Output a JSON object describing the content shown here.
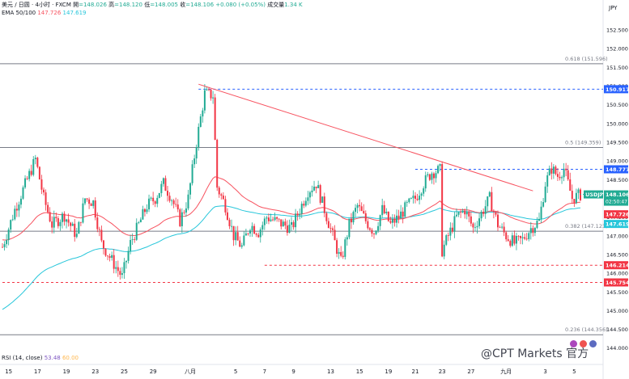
{
  "header": {
    "symbol_line": "美元 / 日圆 · 4小时 · FXCM",
    "open_label": "開",
    "open": "=148.026",
    "high_label": "高",
    "high": "=148.120",
    "low_label": "低",
    "low": "=148.005",
    "close_label": "收",
    "close": "=148.106",
    "change": "+0.080 (+0.05%)",
    "volume_label": "成交量",
    "volume": "1.34 K",
    "ema_label": "EMA 50/100",
    "ema_short": "147.726",
    "ema_long": "147.619"
  },
  "currency": "JPY",
  "rsi": {
    "label": "RSI (14, close)",
    "value1": "53.48",
    "value2": "60.00"
  },
  "watermark": "@CPT Markets 官方",
  "colors": {
    "up": "#22ab94",
    "down": "#f23645",
    "ema_short": "#f7525f",
    "ema_long": "#26c6da",
    "fib": "#787b86",
    "trend": "#f7525f",
    "blue_level": "#2962ff",
    "red_level": "#f23645"
  },
  "chart_data": {
    "type": "candlestick",
    "y_range": [
      143.8,
      153.3
    ],
    "y_ticks": [
      "152.500",
      "152.000",
      "151.500",
      "151.000",
      "150.500",
      "150.000",
      "149.500",
      "149.000",
      "148.500",
      "148.000",
      "147.500",
      "147.000",
      "146.500",
      "146.000",
      "145.500",
      "145.000",
      "144.500",
      "144.000"
    ],
    "y_tick_values": [
      152.5,
      152.0,
      151.5,
      151.0,
      150.5,
      150.0,
      149.5,
      149.0,
      148.5,
      148.0,
      147.5,
      147.0,
      146.5,
      146.0,
      145.5,
      145.0,
      144.5,
      144.0
    ],
    "x_ticks": [
      "15",
      "17",
      "19",
      "23",
      "25",
      "29",
      "八月",
      "5",
      "7",
      "9",
      "13",
      "15",
      "19",
      "21",
      "23",
      "27",
      "九月",
      "3",
      "5"
    ],
    "x_tick_index": [
      3,
      17,
      31,
      45,
      59,
      73,
      91,
      113,
      127,
      141,
      159,
      173,
      187,
      200,
      213,
      227,
      244,
      263,
      277
    ],
    "fib_levels": [
      {
        "label": "0.618 (151.596)",
        "value": 151.596
      },
      {
        "label": "0.5 (149.359)",
        "value": 149.359
      },
      {
        "label": "0.382 (147.123)",
        "value": 147.123
      },
      {
        "label": "0.236 (144.356)",
        "value": 144.356
      }
    ],
    "horizontal_levels": [
      {
        "value": 150.917,
        "label": "150.917",
        "color": "#2962ff",
        "style": "dashed",
        "start_index": 95
      },
      {
        "value": 148.777,
        "label": "148.777",
        "color": "#2962ff",
        "style": "dashed",
        "start_index": 200
      },
      {
        "value": 146.214,
        "label": "146.214",
        "color": "#f23645",
        "style": "dashed",
        "start_index": 127
      },
      {
        "value": 145.754,
        "label": "145.754",
        "color": "#f23645",
        "style": "dashed",
        "start_index": 0
      }
    ],
    "trendline": {
      "from": {
        "index": 95,
        "value": 151.05
      },
      "to": {
        "index": 257,
        "value": 148.2
      }
    },
    "price_labels": [
      {
        "text": "USDJPY",
        "value": 148.106,
        "color": "#22ab94"
      },
      {
        "text": "148.106",
        "value": 148.106,
        "color": "#22ab94"
      },
      {
        "text": "02:50:47",
        "value": 148.106,
        "color": "#22ab94",
        "offset": 1
      },
      {
        "text": "147.726",
        "value": 147.726,
        "color": "#f23645"
      },
      {
        "text": "147.619",
        "value": 147.619,
        "color": "#26c6da"
      }
    ],
    "anchors": [
      [
        0,
        146.7
      ],
      [
        6,
        147.7
      ],
      [
        12,
        148.5
      ],
      [
        16,
        149.05
      ],
      [
        20,
        148.0
      ],
      [
        24,
        147.3
      ],
      [
        30,
        147.55
      ],
      [
        36,
        147.0
      ],
      [
        40,
        148.0
      ],
      [
        44,
        147.9
      ],
      [
        48,
        146.8
      ],
      [
        54,
        146.25
      ],
      [
        58,
        145.9
      ],
      [
        62,
        146.8
      ],
      [
        66,
        147.3
      ],
      [
        70,
        147.8
      ],
      [
        74,
        148.0
      ],
      [
        78,
        148.4
      ],
      [
        82,
        148.0
      ],
      [
        86,
        147.4
      ],
      [
        90,
        148.0
      ],
      [
        94,
        149.5
      ],
      [
        98,
        150.8
      ],
      [
        102,
        150.75
      ],
      [
        104,
        148.3
      ],
      [
        108,
        147.8
      ],
      [
        112,
        147.0
      ],
      [
        116,
        146.7
      ],
      [
        120,
        147.3
      ],
      [
        124,
        147.1
      ],
      [
        128,
        147.5
      ],
      [
        132,
        147.4
      ],
      [
        136,
        147.3
      ],
      [
        140,
        147.2
      ],
      [
        144,
        147.7
      ],
      [
        148,
        148.2
      ],
      [
        152,
        148.4
      ],
      [
        156,
        147.7
      ],
      [
        160,
        147.0
      ],
      [
        164,
        146.3
      ],
      [
        168,
        147.3
      ],
      [
        172,
        147.8
      ],
      [
        176,
        147.4
      ],
      [
        180,
        147.1
      ],
      [
        184,
        147.7
      ],
      [
        188,
        147.3
      ],
      [
        192,
        147.5
      ],
      [
        196,
        147.8
      ],
      [
        200,
        148.0
      ],
      [
        204,
        148.4
      ],
      [
        208,
        148.7
      ],
      [
        212,
        148.75
      ],
      [
        213,
        146.6
      ],
      [
        216,
        147.0
      ],
      [
        220,
        147.5
      ],
      [
        224,
        147.7
      ],
      [
        228,
        147.2
      ],
      [
        232,
        147.6
      ],
      [
        236,
        148.0
      ],
      [
        240,
        147.3
      ],
      [
        244,
        147.0
      ],
      [
        248,
        146.8
      ],
      [
        252,
        146.9
      ],
      [
        256,
        147.2
      ],
      [
        260,
        147.4
      ],
      [
        263,
        148.4
      ],
      [
        266,
        148.8
      ],
      [
        269,
        148.6
      ],
      [
        272,
        148.8
      ],
      [
        276,
        148.0
      ],
      [
        280,
        148.1
      ]
    ]
  }
}
